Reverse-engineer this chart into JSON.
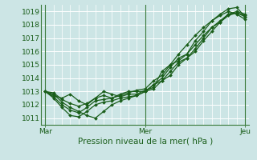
{
  "title": "",
  "xlabel": "Pression niveau de la mer( hPa )",
  "bg_color": "#cce5e5",
  "grid_color": "#aad4d4",
  "line_color": "#1a5e1a",
  "marker_color": "#1a5e1a",
  "xtick_labels": [
    "Mar",
    "Mer",
    "Jeu"
  ],
  "xtick_positions": [
    0,
    48,
    96
  ],
  "ylim": [
    1010.5,
    1019.5
  ],
  "xlim": [
    -2,
    98
  ],
  "yticks": [
    1011,
    1012,
    1013,
    1014,
    1015,
    1016,
    1017,
    1018,
    1019
  ],
  "series": [
    {
      "x": [
        0,
        4,
        8,
        12,
        16,
        20,
        24,
        28,
        32,
        36,
        40,
        44,
        48,
        52,
        56,
        60,
        64,
        68,
        72,
        76,
        80,
        84,
        88,
        92,
        96
      ],
      "y": [
        1013.0,
        1012.8,
        1012.2,
        1011.8,
        1011.5,
        1011.2,
        1011.0,
        1011.5,
        1012.0,
        1012.3,
        1012.5,
        1012.7,
        1013.0,
        1013.5,
        1013.8,
        1014.2,
        1015.0,
        1015.5,
        1016.0,
        1016.8,
        1017.5,
        1018.2,
        1018.8,
        1018.9,
        1018.7
      ]
    },
    {
      "x": [
        0,
        4,
        8,
        12,
        16,
        20,
        24,
        28,
        32,
        36,
        40,
        44,
        48,
        52,
        56,
        60,
        64,
        68,
        72,
        76,
        80,
        84,
        88,
        92,
        96
      ],
      "y": [
        1013.0,
        1012.5,
        1011.8,
        1011.2,
        1011.1,
        1011.5,
        1012.0,
        1012.2,
        1012.3,
        1012.5,
        1012.6,
        1012.7,
        1013.0,
        1013.2,
        1013.8,
        1014.5,
        1015.2,
        1015.5,
        1016.2,
        1017.0,
        1017.8,
        1018.3,
        1018.8,
        1019.0,
        1018.8
      ]
    },
    {
      "x": [
        0,
        4,
        8,
        12,
        16,
        20,
        24,
        28,
        32,
        36,
        40,
        44,
        48,
        52,
        56,
        60,
        64,
        68,
        72,
        76,
        80,
        84,
        88,
        92,
        96
      ],
      "y": [
        1013.0,
        1012.6,
        1012.0,
        1011.6,
        1011.4,
        1011.8,
        1012.3,
        1012.4,
        1012.5,
        1012.8,
        1013.0,
        1013.0,
        1013.0,
        1013.5,
        1014.0,
        1014.8,
        1015.5,
        1015.8,
        1016.5,
        1017.2,
        1017.8,
        1018.2,
        1018.7,
        1018.9,
        1018.6
      ]
    },
    {
      "x": [
        0,
        4,
        8,
        12,
        16,
        20,
        24,
        28,
        32,
        36,
        40,
        44,
        48,
        52,
        56,
        60,
        64,
        68,
        72,
        76,
        80,
        84,
        88,
        92,
        96
      ],
      "y": [
        1013.0,
        1012.7,
        1012.5,
        1012.8,
        1012.3,
        1012.0,
        1012.5,
        1013.0,
        1012.8,
        1012.6,
        1012.8,
        1012.8,
        1013.1,
        1013.3,
        1014.5,
        1015.0,
        1015.3,
        1015.8,
        1016.8,
        1017.5,
        1018.3,
        1018.8,
        1019.2,
        1019.3,
        1018.6
      ]
    },
    {
      "x": [
        0,
        4,
        8,
        12,
        16,
        20,
        24,
        28,
        32,
        36,
        40,
        44,
        48,
        52,
        56,
        60,
        64,
        68,
        72,
        76,
        80,
        84,
        88,
        92,
        96
      ],
      "y": [
        1013.0,
        1012.9,
        1012.4,
        1012.1,
        1011.9,
        1012.1,
        1012.5,
        1012.7,
        1012.5,
        1012.7,
        1012.9,
        1013.1,
        1013.2,
        1013.8,
        1014.2,
        1015.0,
        1015.8,
        1016.5,
        1017.2,
        1017.8,
        1018.3,
        1018.7,
        1019.0,
        1018.8,
        1018.4
      ]
    }
  ]
}
